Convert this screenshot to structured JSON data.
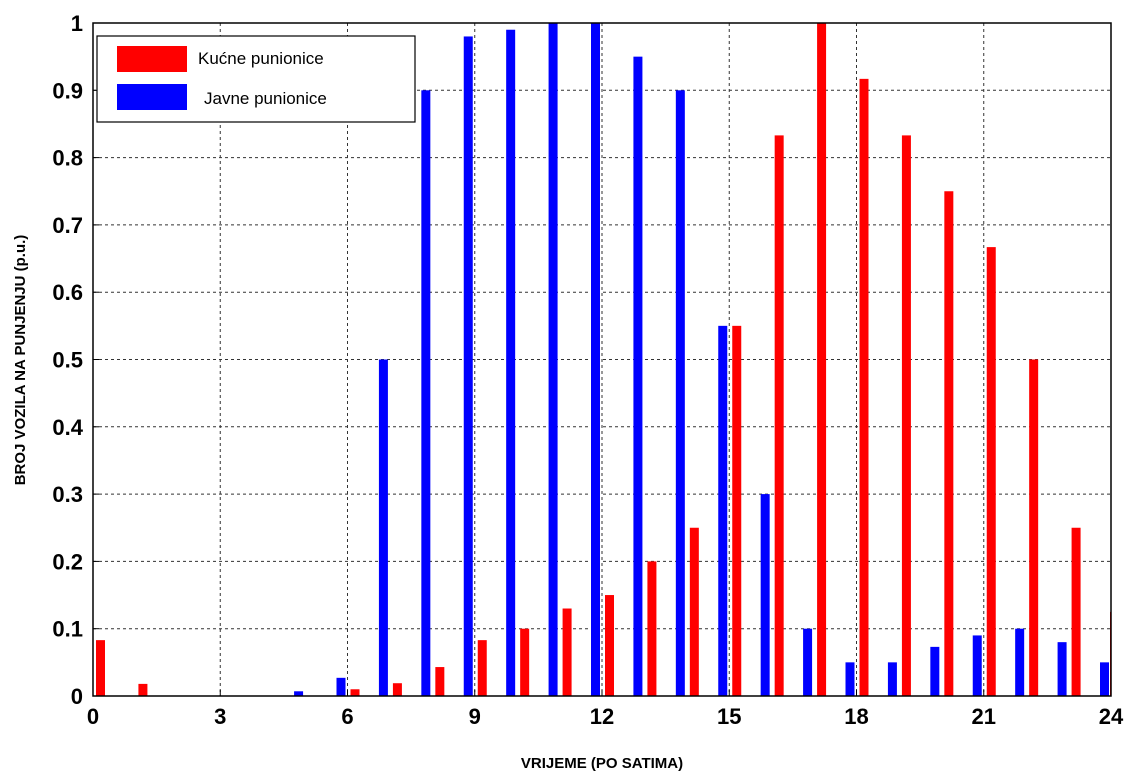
{
  "chart_data": {
    "type": "bar",
    "title": "",
    "xlabel": "VRIJEME (PO SATIMA)",
    "ylabel": "BROJ VOZILA NA PUNJENJU (p.u.)",
    "xlim": [
      0,
      24
    ],
    "ylim": [
      0,
      1
    ],
    "x_ticks": [
      0,
      3,
      6,
      9,
      12,
      15,
      18,
      21,
      24
    ],
    "y_ticks": [
      0,
      0.1,
      0.2,
      0.3,
      0.4,
      0.5,
      0.6,
      0.7,
      0.8,
      0.9,
      1
    ],
    "y_tick_labels": [
      "0",
      "0.1",
      "0.2",
      "0.3",
      "0.4",
      "0.5",
      "0.6",
      "0.7",
      "0.8",
      "0.9",
      "1"
    ],
    "grid": true,
    "legend_position": "top-left",
    "series": [
      {
        "name": "Kućne punionice",
        "color": "#ff0000",
        "x": [
          0,
          1,
          2,
          3,
          4,
          5,
          6,
          7,
          8,
          9,
          10,
          11,
          12,
          13,
          14,
          15,
          16,
          17,
          18,
          19,
          20,
          21,
          22,
          23,
          24
        ],
        "values": [
          0.083,
          0.018,
          0,
          0,
          0,
          0,
          0.01,
          0.019,
          0.043,
          0.083,
          0.1,
          0.13,
          0.15,
          0.2,
          0.25,
          0.55,
          0.833,
          1.0,
          0.917,
          0.833,
          0.75,
          0.667,
          0.5,
          0.25,
          0.125
        ]
      },
      {
        "name": "Javne punionice",
        "color": "#0000ff",
        "x": [
          0,
          1,
          2,
          3,
          4,
          5,
          6,
          7,
          8,
          9,
          10,
          11,
          12,
          13,
          14,
          15,
          16,
          17,
          18,
          19,
          20,
          21,
          22,
          23,
          24
        ],
        "values": [
          0,
          0,
          0,
          0,
          0,
          0.007,
          0.027,
          0.5,
          0.9,
          0.98,
          0.99,
          1.0,
          1.0,
          0.95,
          0.9,
          0.55,
          0.3,
          0.1,
          0.05,
          0.05,
          0.073,
          0.09,
          0.1,
          0.08,
          0.05
        ]
      }
    ]
  }
}
